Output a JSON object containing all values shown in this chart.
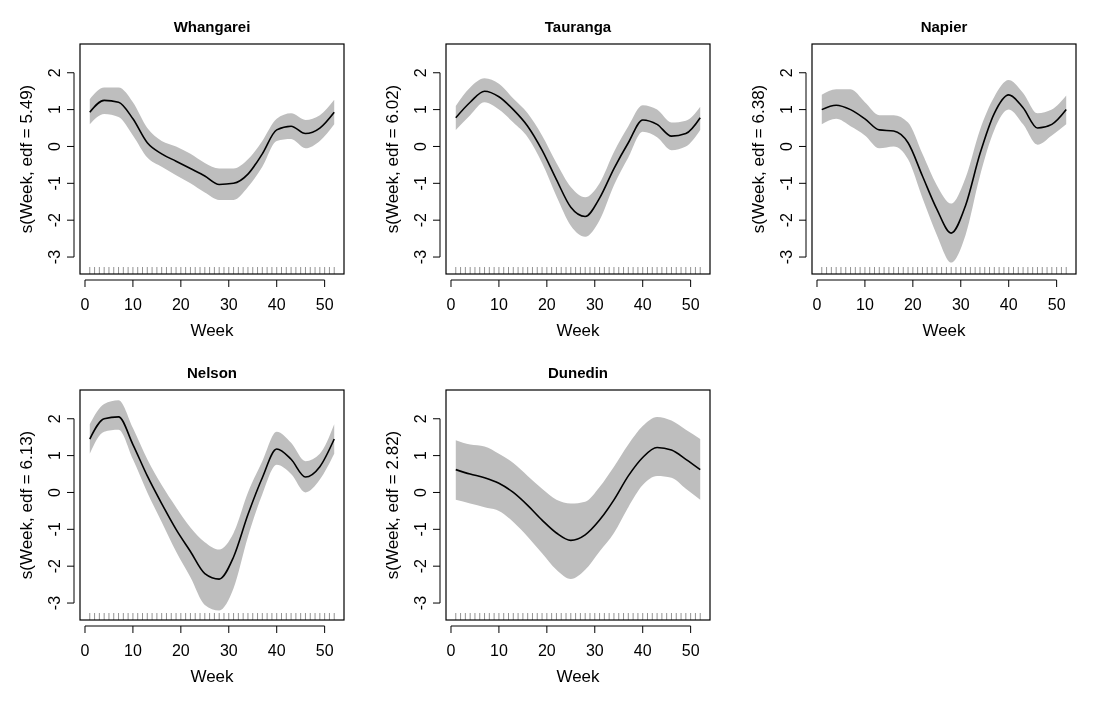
{
  "chart_data": [
    {
      "type": "line",
      "title": "Whangarei",
      "xlabel": "Week",
      "ylabel": "s(Week, edf = 5.49)",
      "xlim": [
        -1.04,
        54.04
      ],
      "ylim": [
        -3.46,
        2.78
      ],
      "xticks": [
        0,
        10,
        20,
        30,
        40,
        50
      ],
      "yticks": [
        -3,
        -2,
        -1,
        0,
        1,
        2
      ],
      "x": [
        1,
        4,
        7,
        10,
        13,
        16,
        19,
        22,
        25,
        28,
        31,
        34,
        37,
        40,
        43,
        46,
        49,
        52
      ],
      "series": [
        {
          "color": "#000000",
          "values": [
            0.93,
            1.25,
            1.2,
            0.75,
            0.1,
            -0.2,
            -0.4,
            -0.6,
            -0.8,
            -1.03,
            -1.0,
            -0.75,
            -0.2,
            0.45,
            0.55,
            0.35,
            0.5,
            0.93
          ],
          "upper": [
            1.28,
            1.6,
            1.6,
            1.2,
            0.5,
            0.15,
            0,
            -0.2,
            -0.45,
            -0.6,
            -0.6,
            -0.35,
            0.15,
            0.75,
            0.9,
            0.72,
            0.85,
            1.27
          ],
          "lower": [
            0.6,
            0.88,
            0.8,
            0.3,
            -0.3,
            -0.55,
            -0.78,
            -1.0,
            -1.25,
            -1.45,
            -1.45,
            -1.1,
            -0.55,
            0.15,
            0.2,
            -0.05,
            0.15,
            0.6
          ]
        }
      ]
    },
    {
      "type": "line",
      "title": "Tauranga",
      "xlabel": "Week",
      "ylabel": "s(Week, edf = 6.02)",
      "xlim": [
        -1.04,
        54.04
      ],
      "ylim": [
        -3.46,
        2.78
      ],
      "xticks": [
        0,
        10,
        20,
        30,
        40,
        50
      ],
      "yticks": [
        -3,
        -2,
        -1,
        0,
        1,
        2
      ],
      "x": [
        1,
        4,
        7,
        10,
        13,
        16,
        19,
        22,
        25,
        28,
        31,
        34,
        37,
        40,
        43,
        46,
        49,
        52
      ],
      "series": [
        {
          "color": "#000000",
          "values": [
            0.78,
            1.2,
            1.5,
            1.35,
            1.0,
            0.55,
            -0.1,
            -0.9,
            -1.65,
            -1.9,
            -1.4,
            -0.6,
            0.1,
            0.72,
            0.6,
            0.28,
            0.35,
            0.78
          ],
          "upper": [
            1.1,
            1.6,
            1.85,
            1.7,
            1.3,
            0.9,
            0.3,
            -0.45,
            -1.1,
            -1.38,
            -1.0,
            -0.15,
            0.55,
            1.12,
            1.0,
            0.65,
            0.7,
            1.08
          ],
          "lower": [
            0.45,
            0.85,
            1.2,
            1.0,
            0.65,
            0.25,
            -0.45,
            -1.35,
            -2.15,
            -2.45,
            -2.0,
            -1.05,
            -0.3,
            0.4,
            0.25,
            -0.1,
            0.0,
            0.45
          ]
        }
      ]
    },
    {
      "type": "line",
      "title": "Napier",
      "xlabel": "Week",
      "ylabel": "s(Week, edf = 6.38)",
      "xlim": [
        -1.04,
        54.04
      ],
      "ylim": [
        -3.46,
        2.78
      ],
      "xticks": [
        0,
        10,
        20,
        30,
        40,
        50
      ],
      "yticks": [
        -3,
        -2,
        -1,
        0,
        1,
        2
      ],
      "x": [
        1,
        4,
        7,
        10,
        13,
        16,
        19,
        22,
        25,
        28,
        31,
        34,
        37,
        40,
        43,
        46,
        49,
        52
      ],
      "series": [
        {
          "color": "#000000",
          "values": [
            1.0,
            1.12,
            1.0,
            0.75,
            0.45,
            0.42,
            0.1,
            -0.8,
            -1.7,
            -2.35,
            -1.6,
            -0.2,
            0.9,
            1.4,
            1.05,
            0.5,
            0.6,
            1.0
          ],
          "upper": [
            1.4,
            1.55,
            1.55,
            1.2,
            0.85,
            0.85,
            0.65,
            -0.2,
            -1.05,
            -1.55,
            -0.85,
            0.45,
            1.35,
            1.8,
            1.45,
            0.9,
            1.0,
            1.38
          ],
          "lower": [
            0.6,
            0.75,
            0.55,
            0.3,
            -0.05,
            0.0,
            -0.35,
            -1.4,
            -2.4,
            -3.15,
            -2.4,
            -0.8,
            0.45,
            1.0,
            0.6,
            0.05,
            0.3,
            0.6
          ]
        }
      ]
    },
    {
      "type": "line",
      "title": "Nelson",
      "xlabel": "Week",
      "ylabel": "s(Week, edf = 6.13)",
      "xlim": [
        -1.04,
        54.04
      ],
      "ylim": [
        -3.46,
        2.78
      ],
      "xticks": [
        0,
        10,
        20,
        30,
        40,
        50
      ],
      "yticks": [
        -3,
        -2,
        -1,
        0,
        1,
        2
      ],
      "x": [
        1,
        4,
        7,
        10,
        13,
        16,
        19,
        22,
        25,
        28,
        31,
        34,
        37,
        40,
        43,
        46,
        49,
        52
      ],
      "series": [
        {
          "color": "#000000",
          "values": [
            1.45,
            2.0,
            2.05,
            1.3,
            0.45,
            -0.3,
            -1.0,
            -1.6,
            -2.2,
            -2.35,
            -1.75,
            -0.6,
            0.4,
            1.18,
            0.9,
            0.42,
            0.7,
            1.45
          ],
          "upper": [
            1.85,
            2.4,
            2.5,
            1.75,
            0.9,
            0.2,
            -0.4,
            -0.95,
            -1.35,
            -1.55,
            -1.1,
            0.0,
            0.85,
            1.65,
            1.35,
            0.85,
            1.05,
            1.85
          ],
          "lower": [
            1.05,
            1.65,
            1.7,
            0.9,
            0.0,
            -0.8,
            -1.6,
            -2.3,
            -3.05,
            -3.2,
            -2.6,
            -1.2,
            -0.05,
            0.75,
            0.5,
            0.0,
            0.35,
            1.05
          ]
        }
      ]
    },
    {
      "type": "line",
      "title": "Dunedin",
      "xlabel": "Week",
      "ylabel": "s(Week, edf = 2.82)",
      "xlim": [
        -1.04,
        54.04
      ],
      "ylim": [
        -3.46,
        2.78
      ],
      "xticks": [
        0,
        10,
        20,
        30,
        40,
        50
      ],
      "yticks": [
        -3,
        -2,
        -1,
        0,
        1,
        2
      ],
      "x": [
        1,
        4,
        7,
        10,
        13,
        16,
        19,
        22,
        25,
        28,
        31,
        34,
        37,
        40,
        43,
        46,
        49,
        52
      ],
      "series": [
        {
          "color": "#000000",
          "values": [
            0.62,
            0.5,
            0.4,
            0.25,
            0.0,
            -0.35,
            -0.75,
            -1.1,
            -1.3,
            -1.15,
            -0.75,
            -0.2,
            0.45,
            0.95,
            1.22,
            1.15,
            0.9,
            0.62
          ],
          "upper": [
            1.42,
            1.3,
            1.25,
            1.05,
            0.8,
            0.45,
            0.1,
            -0.2,
            -0.3,
            -0.25,
            0.15,
            0.7,
            1.3,
            1.8,
            2.05,
            1.95,
            1.7,
            1.45
          ],
          "lower": [
            -0.2,
            -0.3,
            -0.4,
            -0.5,
            -0.8,
            -1.2,
            -1.65,
            -2.1,
            -2.35,
            -2.1,
            -1.6,
            -1.1,
            -0.4,
            0.2,
            0.45,
            0.4,
            0.1,
            -0.2
          ]
        }
      ]
    }
  ]
}
